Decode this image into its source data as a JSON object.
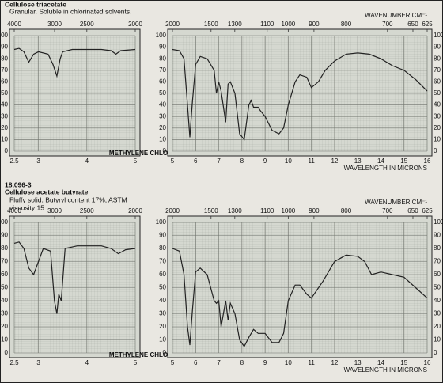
{
  "spectra": [
    {
      "name": "Cellulose triacetate",
      "description": [
        "Granular. Soluble in chlorinated solvents."
      ]
    },
    {
      "id": "18,096-3",
      "name": "Cellulose acetate butyrate",
      "description": [
        "Fluffy solid. Butyryl content 17%, ASTM",
        "viscosity 15"
      ]
    }
  ],
  "chart_data": [
    {
      "type": "line",
      "color": "#222222",
      "grid": true,
      "y_axis_side": "left",
      "x2_scale": "reciprocal",
      "annotation": "METHYLENE CHLORIDE FILM",
      "x": [
        2.5,
        2.6,
        2.7,
        2.8,
        2.9,
        3.0,
        3.2,
        3.3,
        3.38,
        3.45,
        3.5,
        3.7,
        4.0,
        4.3,
        4.5,
        4.6,
        4.7,
        5.0
      ],
      "values": [
        88,
        89,
        86,
        77,
        84,
        86,
        84,
        75,
        65,
        80,
        86,
        88,
        88,
        88,
        87,
        84,
        87,
        88
      ],
      "xlim": [
        2.5,
        5
      ],
      "xticks": [
        2.5,
        3,
        4,
        5
      ],
      "x2ticks": [
        4000,
        3000,
        2500,
        2000
      ],
      "ylim": [
        0,
        100
      ],
      "yticks": [
        0,
        10,
        20,
        30,
        40,
        50,
        60,
        70,
        80,
        90,
        100
      ]
    },
    {
      "type": "line",
      "color": "#222222",
      "grid": true,
      "y_axis_side": "both",
      "x2_scale": "reciprocal",
      "x_label": "WAVELENGTH IN MICRONS",
      "x2_label": "WAVENUMBER CM⁻¹",
      "x": [
        5,
        5.3,
        5.5,
        5.65,
        5.75,
        5.85,
        6.0,
        6.2,
        6.5,
        6.8,
        6.9,
        7.0,
        7.1,
        7.3,
        7.4,
        7.5,
        7.7,
        7.9,
        8.1,
        8.3,
        8.4,
        8.5,
        8.7,
        8.8,
        9.0,
        9.3,
        9.6,
        9.8,
        10.0,
        10.3,
        10.5,
        10.8,
        11.0,
        11.3,
        11.6,
        12.0,
        12.5,
        13.0,
        13.5,
        14.0,
        14.5,
        15.0,
        15.5,
        16.0
      ],
      "values": [
        88,
        87,
        80,
        40,
        12,
        40,
        75,
        82,
        80,
        70,
        50,
        60,
        52,
        25,
        58,
        60,
        50,
        15,
        10,
        40,
        44,
        38,
        38,
        35,
        30,
        18,
        15,
        20,
        40,
        60,
        66,
        64,
        55,
        60,
        70,
        78,
        84,
        85,
        84,
        80,
        74,
        70,
        62,
        52
      ],
      "xlim": [
        5,
        16
      ],
      "xticks": [
        5,
        6,
        7,
        8,
        9,
        10,
        11,
        12,
        13,
        14,
        15,
        16
      ],
      "x2ticks": [
        2000,
        1500,
        1300,
        1100,
        1000,
        900,
        800,
        700,
        650,
        625
      ],
      "ylim": [
        0,
        100
      ],
      "yticks": [
        0,
        10,
        20,
        30,
        40,
        50,
        60,
        70,
        80,
        90,
        100
      ]
    },
    {
      "type": "line",
      "color": "#222222",
      "grid": true,
      "y_axis_side": "left",
      "x2_scale": "reciprocal",
      "annotation": "METHYLENE CHLORIDE FILM",
      "x": [
        2.5,
        2.6,
        2.7,
        2.8,
        2.9,
        3.0,
        3.1,
        3.25,
        3.33,
        3.38,
        3.42,
        3.47,
        3.55,
        3.8,
        4.0,
        4.3,
        4.5,
        4.65,
        4.8,
        5.0
      ],
      "values": [
        84,
        85,
        80,
        65,
        60,
        70,
        80,
        78,
        40,
        30,
        45,
        40,
        80,
        82,
        82,
        82,
        80,
        76,
        79,
        80
      ],
      "xlim": [
        2.5,
        5
      ],
      "xticks": [
        2.5,
        3,
        4,
        5
      ],
      "x2ticks": [
        4000,
        3000,
        2500,
        2000
      ],
      "ylim": [
        0,
        100
      ],
      "yticks": [
        0,
        10,
        20,
        30,
        40,
        50,
        60,
        70,
        80,
        90,
        100
      ]
    },
    {
      "type": "line",
      "color": "#222222",
      "grid": true,
      "y_axis_side": "both",
      "x2_scale": "reciprocal",
      "x_label": "WAVELENGTH IN MICRONS",
      "x2_label": "WAVENUMBER CM⁻¹",
      "x": [
        5,
        5.3,
        5.5,
        5.65,
        5.75,
        5.85,
        6.0,
        6.2,
        6.5,
        6.8,
        6.9,
        7.0,
        7.1,
        7.3,
        7.4,
        7.5,
        7.7,
        7.9,
        8.1,
        8.3,
        8.5,
        8.7,
        9.0,
        9.3,
        9.6,
        9.8,
        10.0,
        10.3,
        10.5,
        10.8,
        11.0,
        11.5,
        12.0,
        12.5,
        13.0,
        13.3,
        13.6,
        14.0,
        14.5,
        15.0,
        15.5,
        16.0
      ],
      "values": [
        80,
        78,
        60,
        20,
        6,
        30,
        62,
        65,
        60,
        40,
        38,
        40,
        20,
        40,
        25,
        38,
        30,
        10,
        5,
        12,
        18,
        15,
        15,
        8,
        8,
        15,
        40,
        52,
        52,
        45,
        42,
        55,
        70,
        75,
        74,
        70,
        60,
        62,
        60,
        58,
        50,
        42
      ],
      "xlim": [
        5,
        16
      ],
      "xticks": [
        5,
        6,
        7,
        8,
        9,
        10,
        11,
        12,
        13,
        14,
        15,
        16
      ],
      "x2ticks": [
        2000,
        1500,
        1300,
        1100,
        1000,
        900,
        800,
        700,
        650,
        625
      ],
      "ylim": [
        0,
        100
      ],
      "yticks": [
        0,
        10,
        20,
        30,
        40,
        50,
        60,
        70,
        80,
        90,
        100
      ]
    }
  ]
}
